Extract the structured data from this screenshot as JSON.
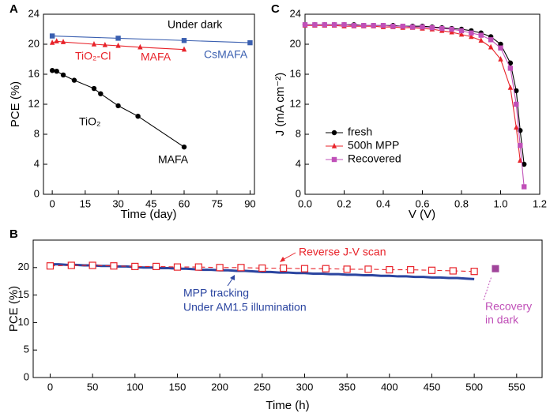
{
  "chart_data": [
    {
      "type": "line",
      "panel": "A",
      "xlabel": "Time (day)",
      "ylabel": "PCE (%)",
      "xlim": [
        -4,
        92
      ],
      "xticks": [
        0,
        15,
        30,
        45,
        60,
        75,
        90
      ],
      "ylim": [
        0,
        24
      ],
      "yticks": [
        0,
        4,
        8,
        12,
        16,
        20,
        24
      ],
      "annotations": [
        {
          "text": "Under dark",
          "color": "#000000"
        }
      ],
      "series": [
        {
          "name": "CsMAFA",
          "color": "#3a5fb0",
          "marker": "square",
          "x": [
            0,
            30,
            60,
            90
          ],
          "values": [
            21.1,
            20.8,
            20.5,
            20.2
          ]
        },
        {
          "name": "MAFA",
          "substrate": "TiO₂-Cl",
          "color": "#e8232a",
          "marker": "triangle",
          "x": [
            0,
            2,
            5,
            19,
            24,
            30,
            40,
            60
          ],
          "values": [
            20.2,
            20.4,
            20.3,
            20.0,
            19.9,
            19.8,
            19.6,
            19.3
          ]
        },
        {
          "name": "MAFA",
          "substrate": "TiO₂",
          "color": "#000000",
          "marker": "circle",
          "x": [
            0,
            2,
            5,
            10,
            19,
            22,
            30,
            39,
            60
          ],
          "values": [
            16.5,
            16.4,
            15.9,
            15.2,
            14.1,
            13.4,
            11.8,
            10.4,
            6.3
          ]
        }
      ]
    },
    {
      "type": "line",
      "panel": "C",
      "xlabel": "V (V)",
      "ylabel": "J (mA cm⁻²)",
      "legend": "lower left",
      "xlim": [
        0,
        1.2
      ],
      "xticks": [
        {
          "value": 0,
          "label": "0.0"
        },
        0.2,
        0.4,
        0.6,
        0.8,
        {
          "value": 1,
          "label": "1.0"
        },
        1.2
      ],
      "ylim": [
        0,
        24
      ],
      "yticks": [
        0,
        4,
        8,
        12,
        16,
        20,
        24
      ],
      "x": [
        0,
        0.05,
        0.1,
        0.15,
        0.2,
        0.25,
        0.3,
        0.35,
        0.4,
        0.45,
        0.5,
        0.55,
        0.6,
        0.65,
        0.7,
        0.75,
        0.8,
        0.85,
        0.9,
        0.95,
        1.0,
        1.05,
        1.08,
        1.1,
        1.12
      ],
      "series": [
        {
          "name": "fresh",
          "color": "#000000",
          "marker": "circle",
          "values": [
            22.6,
            22.6,
            22.6,
            22.6,
            22.6,
            22.6,
            22.5,
            22.5,
            22.5,
            22.5,
            22.4,
            22.4,
            22.4,
            22.3,
            22.2,
            22.1,
            22.0,
            21.8,
            21.5,
            21.0,
            20.0,
            17.5,
            13.8,
            8.5,
            4.0
          ]
        },
        {
          "name": "500h MPP",
          "color": "#e8232a",
          "marker": "triangle",
          "values": [
            22.5,
            22.5,
            22.5,
            22.5,
            22.4,
            22.4,
            22.4,
            22.4,
            22.3,
            22.3,
            22.2,
            22.2,
            22.1,
            22.0,
            21.8,
            21.6,
            21.3,
            21.0,
            20.5,
            19.6,
            18.0,
            14.2,
            8.9,
            4.5,
            null
          ]
        },
        {
          "name": "Recovered",
          "color": "#c050b8",
          "marker": "square",
          "values": [
            22.6,
            22.6,
            22.6,
            22.6,
            22.6,
            22.5,
            22.5,
            22.5,
            22.5,
            22.4,
            22.4,
            22.3,
            22.3,
            22.2,
            22.1,
            22.0,
            21.8,
            21.5,
            21.2,
            20.6,
            19.5,
            16.8,
            12.0,
            6.5,
            1.0
          ]
        }
      ]
    },
    {
      "type": "line",
      "panel": "B",
      "xlabel": "Time (h)",
      "ylabel": "PCE (%)",
      "xlim": [
        -20,
        580
      ],
      "xticks": [
        0,
        50,
        100,
        150,
        200,
        250,
        300,
        350,
        400,
        450,
        500,
        550
      ],
      "ylim": [
        0,
        25
      ],
      "yticks": [
        0,
        5,
        10,
        15,
        20
      ],
      "annotations": [
        {
          "text": "Reverse J-V scan",
          "color": "#e8232a"
        },
        {
          "text": "MPP tracking",
          "color": "#2b45a0"
        },
        {
          "text": "Under  AM1.5 illumination",
          "color": "#2b45a0"
        },
        {
          "text": "Recovery",
          "color": "#c050b8"
        },
        {
          "text": "in dark",
          "color": "#c050b8"
        }
      ],
      "series": [
        {
          "color": "#2b45a0",
          "marker": "none",
          "x": [
            0,
            10,
            20,
            30,
            40,
            50,
            60,
            70,
            80,
            90,
            100,
            110,
            120,
            130,
            140,
            150,
            160,
            170,
            180,
            190,
            200,
            210,
            220,
            230,
            240,
            250,
            260,
            270,
            280,
            290,
            300,
            310,
            320,
            330,
            340,
            350,
            360,
            370,
            380,
            390,
            400,
            410,
            420,
            430,
            440,
            450,
            460,
            470,
            480,
            490,
            500
          ],
          "values": [
            20.6,
            20.6,
            20.5,
            20.5,
            20.4,
            20.4,
            20.3,
            20.3,
            20.2,
            20.2,
            20.1,
            20.0,
            20.0,
            19.9,
            19.9,
            19.8,
            19.8,
            19.7,
            19.6,
            19.6,
            19.5,
            19.5,
            19.4,
            19.4,
            19.3,
            19.2,
            19.2,
            19.1,
            19.1,
            19.0,
            19.0,
            18.9,
            18.9,
            18.8,
            18.8,
            18.7,
            18.7,
            18.6,
            18.6,
            18.5,
            18.5,
            18.4,
            18.4,
            18.3,
            18.3,
            18.2,
            18.2,
            18.1,
            18.1,
            18.0,
            17.9
          ]
        },
        {
          "color": "#e8232a",
          "marker": "open-square",
          "dashed": true,
          "x": [
            0,
            25,
            50,
            75,
            100,
            125,
            150,
            175,
            200,
            225,
            250,
            275,
            300,
            325,
            350,
            375,
            400,
            425,
            450,
            475,
            500
          ],
          "values": [
            20.3,
            20.4,
            20.4,
            20.3,
            20.2,
            20.2,
            20.1,
            20.1,
            20.0,
            20.0,
            19.9,
            19.9,
            19.8,
            19.8,
            19.7,
            19.7,
            19.6,
            19.6,
            19.5,
            19.4,
            19.3
          ]
        },
        {
          "color": "#a0449a",
          "marker": "square",
          "size": 9,
          "x": [
            525
          ],
          "values": [
            19.8
          ]
        }
      ]
    }
  ]
}
